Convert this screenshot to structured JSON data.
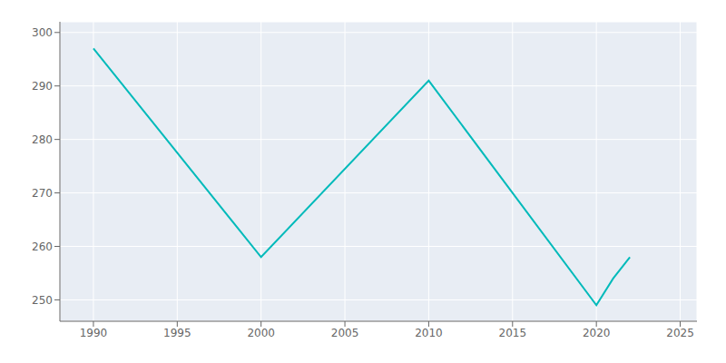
{
  "chart_data": {
    "type": "line",
    "x": [
      1990,
      2000,
      2010,
      2020,
      2021,
      2022
    ],
    "values": [
      297,
      258,
      291,
      249,
      254,
      258
    ],
    "color": "#00BABA",
    "xlim": [
      1988,
      2026
    ],
    "ylim": [
      246,
      302
    ],
    "xticks": [
      1990,
      1995,
      2000,
      2005,
      2010,
      2015,
      2020,
      2025
    ],
    "yticks": [
      250,
      260,
      270,
      280,
      290,
      300
    ],
    "grid": true
  }
}
